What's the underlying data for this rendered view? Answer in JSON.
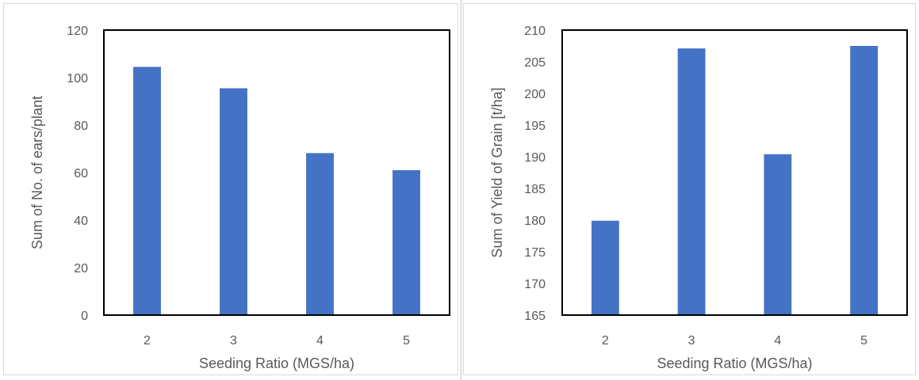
{
  "chart_data": [
    {
      "type": "bar",
      "categories": [
        "2",
        "3",
        "4",
        "5"
      ],
      "values": [
        104.5,
        95.5,
        68.2,
        61.0
      ],
      "xlabel": "Seeding Ratio (MGS/ha)",
      "ylabel": "Sum of No. of ears/plant",
      "ylim": [
        0,
        120
      ],
      "yticks": [
        "0",
        "20",
        "40",
        "60",
        "80",
        "100",
        "120"
      ],
      "grid": false,
      "legend": "none",
      "bar_color": "#4472C4"
    },
    {
      "type": "bar",
      "categories": [
        "2",
        "3",
        "4",
        "5"
      ],
      "values": [
        179.9,
        207.1,
        190.4,
        207.5
      ],
      "xlabel": "Seeding Ratio (MGS/ha)",
      "ylabel": "Sum of Yield of Grain [t/ha]",
      "ylim": [
        165,
        210
      ],
      "yticks": [
        "165",
        "170",
        "175",
        "180",
        "185",
        "190",
        "195",
        "200",
        "205",
        "210"
      ],
      "grid": false,
      "legend": "none",
      "bar_color": "#4472C4"
    }
  ]
}
